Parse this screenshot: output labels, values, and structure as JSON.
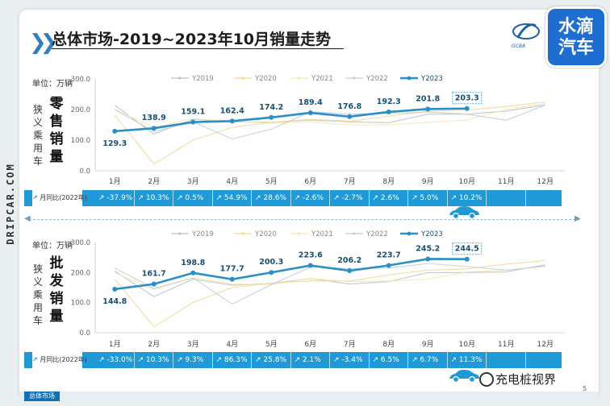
{
  "header": {
    "title": "总体市场-2019~2023年10月销量走势",
    "logo_text": "水滴汽车",
    "badge_text": "GCBA",
    "side_brand": "DRIPCAR.COM",
    "watermark": "充电桩视界",
    "footer_tab": "总体市场",
    "page_number": "5"
  },
  "colors": {
    "accent": "#2a8ec8",
    "series_2023": "#2a8ec8",
    "y2019": "#b9c3ca",
    "y2020": "#f2d79a",
    "y2021": "#f6e7b0",
    "y2022": "#c3cdd4",
    "band": "#1f9ad6"
  },
  "chart_data": [
    {
      "type": "line",
      "unit_label": "单位：万辆",
      "vertical_title": "零售销量",
      "vertical_subtitle": "狭义乘用车",
      "categories": [
        "1月",
        "2月",
        "3月",
        "4月",
        "5月",
        "6月",
        "7月",
        "8月",
        "9月",
        "10月",
        "11月",
        "12月"
      ],
      "ylim": [
        0,
        300
      ],
      "yticks": [
        "0.0",
        "100.0",
        "200.0",
        "300.0"
      ],
      "legend_position": "top",
      "series": [
        {
          "name": "Y2019",
          "values": [
            214,
            120,
            168,
            160,
            158,
            166,
            160,
            157,
            185,
            185,
            195,
            215
          ]
        },
        {
          "name": "Y2020",
          "values": [
            182,
            22,
            100,
            142,
            158,
            168,
            162,
            178,
            195,
            198,
            210,
            225
          ]
        },
        {
          "name": "Y2021",
          "values": [
            200,
            142,
            170,
            162,
            155,
            160,
            150,
            150,
            158,
            166,
            200,
            220
          ]
        },
        {
          "name": "Y2022",
          "values": [
            200,
            128,
            160,
            104,
            136,
            193,
            185,
            187,
            192,
            185,
            165,
            215
          ]
        },
        {
          "name": "Y2023",
          "values": [
            129.3,
            138.9,
            159.1,
            162.4,
            174.2,
            189.4,
            176.8,
            192.3,
            201.8,
            203.3,
            null,
            null
          ]
        }
      ],
      "data_labels": [
        "129.3",
        "138.9",
        "159.1",
        "162.4",
        "174.2",
        "189.4",
        "176.8",
        "192.3",
        "201.8",
        "203.3"
      ],
      "yoy_label": "月同比(2022年)",
      "yoy": [
        "-37.9%",
        "10.3%",
        "0.5%",
        "54.9%",
        "28.6%",
        "-2.6%",
        "-2.7%",
        "2.6%",
        "5.0%",
        "10.2%"
      ]
    },
    {
      "type": "line",
      "unit_label": "单位：万辆",
      "vertical_title": "批发销量",
      "vertical_subtitle": "狭义乘用车",
      "categories": [
        "1月",
        "2月",
        "3月",
        "4月",
        "5月",
        "6月",
        "7月",
        "8月",
        "9月",
        "10月",
        "11月",
        "12月"
      ],
      "ylim": [
        0,
        300
      ],
      "yticks": [
        "0.0",
        "100.0",
        "200.0",
        "300.0"
      ],
      "legend_position": "top",
      "series": [
        {
          "name": "Y2019",
          "values": [
            205,
            120,
            178,
            158,
            164,
            180,
            162,
            170,
            200,
            200,
            202,
            226
          ]
        },
        {
          "name": "Y2020",
          "values": [
            178,
            20,
            100,
            150,
            165,
            172,
            172,
            192,
            208,
            212,
            228,
            240
          ]
        },
        {
          "name": "Y2021",
          "values": [
            200,
            144,
            183,
            162,
            160,
            180,
            170,
            172,
            178,
            202,
            208,
            220
          ]
        },
        {
          "name": "Y2022",
          "values": [
            215,
            147,
            182,
            95,
            160,
            218,
            213,
            215,
            230,
            220,
            208,
            222
          ]
        },
        {
          "name": "Y2023",
          "values": [
            144.8,
            161.7,
            198.8,
            177.7,
            200.3,
            223.6,
            206.2,
            223.7,
            245.2,
            244.5,
            null,
            null
          ]
        }
      ],
      "data_labels": [
        "144.8",
        "161.7",
        "198.8",
        "177.7",
        "200.3",
        "223.6",
        "206.2",
        "223.7",
        "245.2",
        "244.5"
      ],
      "yoy_label": "月同比(2022年)",
      "yoy": [
        "-33.0%",
        "10.3%",
        "9.3%",
        "86.3%",
        "25.8%",
        "2.1%",
        "-3.4%",
        "6.5%",
        "6.7%",
        "11.3%"
      ]
    }
  ]
}
